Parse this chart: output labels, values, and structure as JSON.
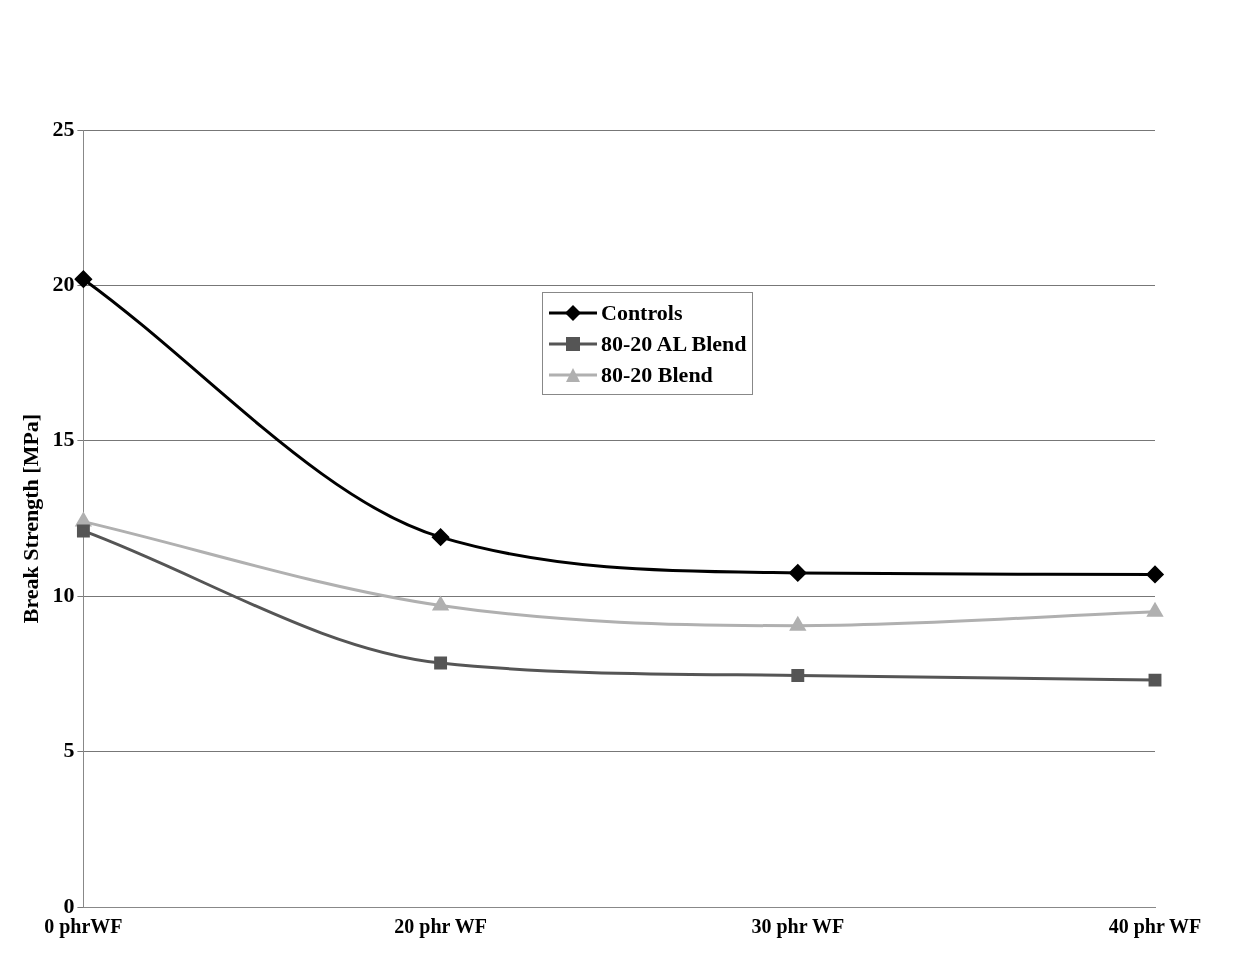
{
  "chart_data": {
    "type": "line",
    "ylabel": "Break Strength [MPa]",
    "categories": [
      "0 phrWF",
      "20 phr WF",
      "30 phr WF",
      "40 phr WF"
    ],
    "series": [
      {
        "name": "Controls",
        "color": "#000000",
        "marker": "diamond",
        "values": [
          20.2,
          11.9,
          10.75,
          10.7
        ]
      },
      {
        "name": "80-20 AL Blend",
        "color": "#555555",
        "marker": "square",
        "values": [
          12.1,
          7.85,
          7.45,
          7.3
        ]
      },
      {
        "name": "80-20 Blend",
        "color": "#b0b0b0",
        "marker": "triangle",
        "values": [
          12.4,
          9.7,
          9.05,
          9.5
        ]
      }
    ],
    "ylim": [
      0,
      25
    ],
    "yticks": [
      0,
      5,
      10,
      15,
      20,
      25
    ],
    "grid": "y",
    "legend": "top",
    "line_style": "solid"
  }
}
